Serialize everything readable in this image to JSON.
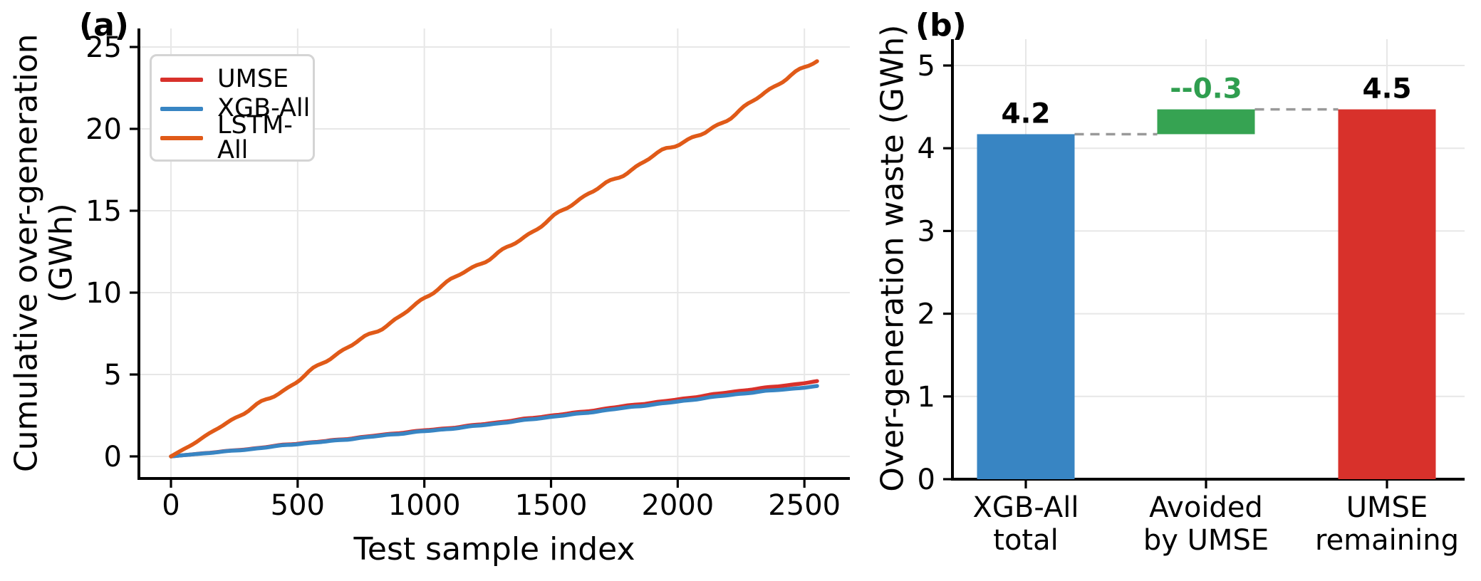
{
  "figure": {
    "background": "#ffffff"
  },
  "chart_data": [
    {
      "type": "line",
      "title": "(a)",
      "xlabel": "Test sample index",
      "ylabel": "Cumulative over-generation\n(GWh)",
      "x_ticks": [
        "0",
        "500",
        "1000",
        "1500",
        "2000",
        "2500"
      ],
      "x_tick_values": [
        0,
        500,
        1000,
        1500,
        2000,
        2500
      ],
      "y_ticks": [
        "0",
        "5",
        "10",
        "15",
        "20",
        "25"
      ],
      "y_tick_values": [
        0,
        5,
        10,
        15,
        20,
        25
      ],
      "xlim": [
        -127,
        2680
      ],
      "ylim": [
        -1.35,
        26.1
      ],
      "grid": true,
      "legend_position": "upper left",
      "x": [
        0,
        150,
        300,
        450,
        600,
        750,
        900,
        1050,
        1200,
        1350,
        1500,
        1650,
        1800,
        1950,
        2100,
        2250,
        2400,
        2550
      ],
      "series": [
        {
          "name": "UMSE",
          "color": "#d8312b",
          "values": [
            0,
            0.22,
            0.45,
            0.7,
            0.92,
            1.18,
            1.42,
            1.66,
            1.92,
            2.18,
            2.5,
            2.78,
            3.08,
            3.38,
            3.7,
            4.0,
            4.3,
            4.58
          ]
        },
        {
          "name": "XGB-All",
          "color": "#3885c3",
          "values": [
            0,
            0.21,
            0.43,
            0.67,
            0.89,
            1.14,
            1.37,
            1.61,
            1.86,
            2.11,
            2.42,
            2.69,
            2.97,
            3.26,
            3.55,
            3.82,
            4.08,
            4.28
          ]
        },
        {
          "name": "LSTM-All",
          "color": "#e05a18",
          "values": [
            0,
            1.35,
            2.75,
            4.15,
            5.7,
            7.1,
            8.55,
            10.2,
            11.6,
            13.0,
            14.45,
            16.1,
            17.4,
            18.7,
            19.7,
            21.2,
            22.75,
            24.2
          ]
        }
      ]
    },
    {
      "type": "bar",
      "subtype": "waterfall",
      "title": "(b)",
      "ylabel": "Over-generation waste (GWh)",
      "categories": [
        "XGB-All\ntotal",
        "Avoided\nby UMSE",
        "UMSE\nremaining"
      ],
      "y_ticks": [
        "0",
        "1",
        "2",
        "3",
        "4",
        "5"
      ],
      "y_tick_values": [
        0,
        1,
        2,
        3,
        4,
        5
      ],
      "ylim": [
        0,
        5.32
      ],
      "grid": true,
      "bars": [
        {
          "bottom": 0,
          "top": 4.17,
          "value": 4.2,
          "value_label": "4.2",
          "color": "#3885c3",
          "label_color": "#000000"
        },
        {
          "bottom": 4.17,
          "top": 4.47,
          "value": -0.3,
          "value_label": "--0.3",
          "color": "#36a352",
          "label_color": "#2f9e4f"
        },
        {
          "bottom": 0,
          "top": 4.47,
          "value": 4.5,
          "value_label": "4.5",
          "color": "#d8312b",
          "label_color": "#000000"
        }
      ],
      "connectors": [
        {
          "y": 4.17,
          "from_bar": 0,
          "to_bar": 1
        },
        {
          "y": 4.47,
          "from_bar": 1,
          "to_bar": 2
        }
      ],
      "connector_color": "#999999",
      "grid_color": "#e7e7e7"
    }
  ]
}
